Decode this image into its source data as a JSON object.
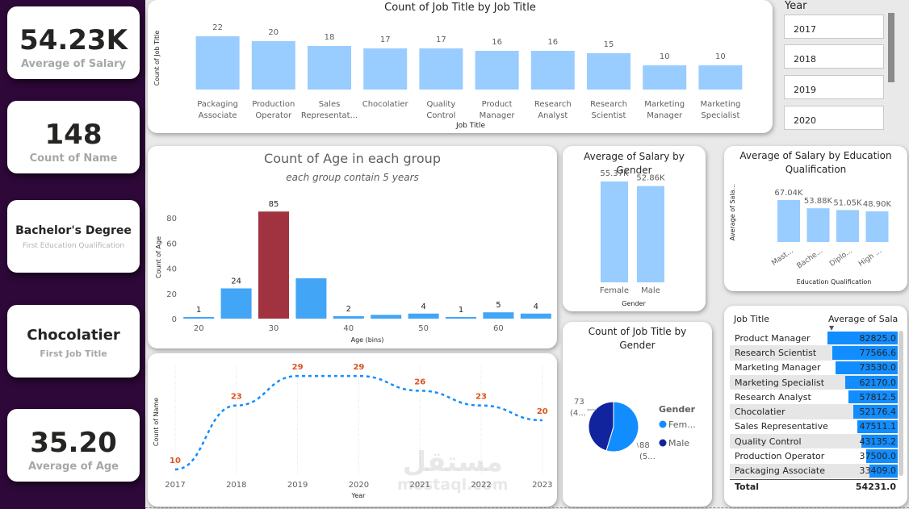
{
  "kpis": [
    {
      "value": "54.23K",
      "label": "Average of Salary"
    },
    {
      "value": "148",
      "label": "Count of Name"
    },
    {
      "value": "Bachelor's Degree",
      "label": "First Education Qualification"
    },
    {
      "value": "Chocolatier",
      "label": "First Job Title"
    },
    {
      "value": "35.20",
      "label": "Average of Age"
    }
  ],
  "year_slicer": {
    "title": "Year",
    "items": [
      "2017",
      "2018",
      "2019",
      "2020"
    ]
  },
  "job_title_chart": {
    "title": "Count of Job Title by Job Title",
    "chart_data": {
      "type": "bar",
      "title": "Count of Job Title by Job Title",
      "xlabel": "Job Title",
      "ylabel": "Count of Job Title",
      "categories": [
        [
          "Packaging",
          "Associate"
        ],
        [
          "Production",
          "Operator"
        ],
        [
          "Sales",
          "Representat..."
        ],
        [
          "Chocolatier"
        ],
        [
          "Quality",
          "Control"
        ],
        [
          "Product",
          "Manager"
        ],
        [
          "Research",
          "Analyst"
        ],
        [
          "Research",
          "Scientist"
        ],
        [
          "Marketing",
          "Manager"
        ],
        [
          "Marketing",
          "Specialist"
        ]
      ],
      "values": [
        22,
        20,
        18,
        17,
        17,
        16,
        16,
        15,
        10,
        10
      ],
      "color": "#99ccff"
    }
  },
  "age_chart": {
    "title": "Count of Age in each group",
    "subtitle": "each group contain 5 years",
    "chart_data": {
      "type": "bar",
      "xlabel": "Age (bins)",
      "ylabel": "Count of Age",
      "x_ticks": [
        20,
        30,
        40,
        50,
        60
      ],
      "y_ticks": [
        0,
        20,
        40,
        60,
        80
      ],
      "bins": [
        20,
        25,
        30,
        35,
        40,
        45,
        50,
        55,
        60,
        65
      ],
      "values": [
        1,
        24,
        85,
        32,
        2,
        3,
        4,
        1,
        5,
        4
      ],
      "shown_labels": [
        "1",
        "24",
        "85",
        "",
        "2",
        "",
        "4",
        "1",
        "5",
        "4"
      ],
      "highlight_index": 2,
      "color": "#42a5f5",
      "highlight_color": "#a0333f",
      "ylim": [
        0,
        90
      ]
    }
  },
  "year_chart": {
    "chart_data": {
      "type": "line",
      "xlabel": "Year",
      "ylabel": "Count of Name",
      "x": [
        2017,
        2018,
        2019,
        2020,
        2021,
        2022,
        2023
      ],
      "values": [
        10,
        23,
        29,
        29,
        26,
        23,
        20
      ],
      "line_color": "#118dff",
      "label_color": "#d9541e",
      "ylim": [
        9,
        30
      ]
    }
  },
  "gender_salary_chart": {
    "title": [
      "Average of Salary by",
      "Gender"
    ],
    "chart_data": {
      "type": "bar",
      "xlabel": "Gender",
      "categories": [
        "Female",
        "Male"
      ],
      "values": [
        55370,
        52860
      ],
      "value_labels": [
        "55.37K",
        "52.86K"
      ],
      "color": "#99ccff"
    }
  },
  "education_chart": {
    "title": [
      "Average of Salary by Education",
      "Qualification"
    ],
    "chart_data": {
      "type": "bar",
      "xlabel": "Education Qualification",
      "ylabel": "Average of Sala...",
      "categories": [
        "Mast...",
        "Bache...",
        "Diplo...",
        "High ..."
      ],
      "values": [
        67040,
        53880,
        51050,
        48900
      ],
      "value_labels": [
        "67.04K",
        "53.88K",
        "51.05K",
        "48.90K"
      ],
      "color": "#99ccff"
    }
  },
  "gender_pie": {
    "title": [
      "Count of Job Title by",
      "Gender"
    ],
    "legend_title": "Gender",
    "chart_data": {
      "type": "pie",
      "categories": [
        "Fem...",
        "Male"
      ],
      "values": [
        88,
        73
      ],
      "colors": [
        "#118dff",
        "#12239e"
      ],
      "labels": [
        [
          "88",
          "(5..."
        ],
        [
          "73",
          "(4..."
        ]
      ]
    }
  },
  "salary_table": {
    "headers": [
      "Job Title",
      "Average of Salar"
    ],
    "rows": [
      {
        "title": "Product Manager",
        "value": "82825.0",
        "num": 82825
      },
      {
        "title": "Research Scientist",
        "value": "77566.6",
        "num": 77566.6
      },
      {
        "title": "Marketing Manager",
        "value": "73530.0",
        "num": 73530
      },
      {
        "title": "Marketing Specialist",
        "value": "62170.0",
        "num": 62170
      },
      {
        "title": "Research Analyst",
        "value": "57812.5",
        "num": 57812.5
      },
      {
        "title": "Chocolatier",
        "value": "52176.4",
        "num": 52176.4
      },
      {
        "title": "Sales Representative",
        "value": "47511.1",
        "num": 47511.1
      },
      {
        "title": "Quality Control",
        "value": "43135.2",
        "num": 43135.2
      },
      {
        "title": "Production Operator",
        "value": "37500.0",
        "num": 37500
      },
      {
        "title": "Packaging Associate",
        "value": "33409.0",
        "num": 33409
      }
    ],
    "total_label": "Total",
    "total_value": "54231.0"
  },
  "watermark": {
    "arabic": "مستقل",
    "latin": "mostaql.com"
  }
}
